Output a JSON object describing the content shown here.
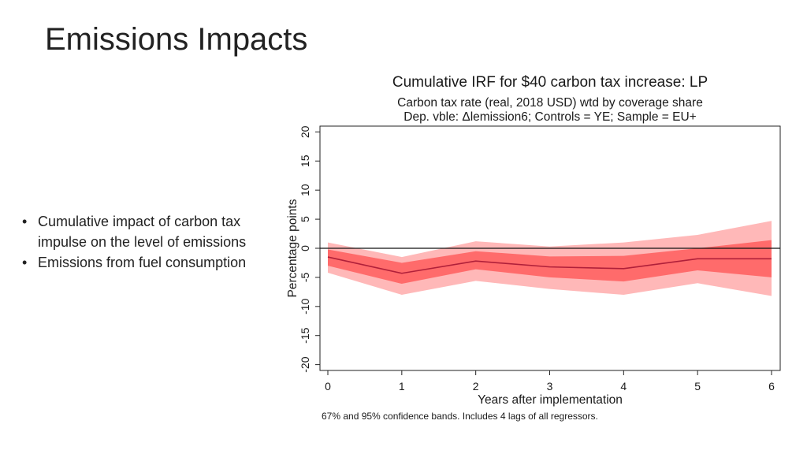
{
  "slide": {
    "title": "Emissions Impacts",
    "bullets": [
      "Cumulative impact of carbon tax impulse on the level of emissions",
      "Emissions from fuel consumption"
    ]
  },
  "chart_data": {
    "type": "line",
    "title": "Cumulative IRF for $40 carbon tax increase: LP",
    "subtitle_lines": [
      "Carbon tax rate (real, 2018 USD) wtd by coverage share",
      "Dep. vble: Δlemission6; Controls = YE; Sample = EU+"
    ],
    "xlabel": "Years after implementation",
    "ylabel": "Percentage points",
    "note": "67% and 95% confidence bands. Includes 4 lags of all regressors.",
    "x": [
      0,
      1,
      2,
      3,
      4,
      5,
      6
    ],
    "x_ticks": [
      "0",
      "1",
      "2",
      "3",
      "4",
      "5",
      "6"
    ],
    "y_ticks": [
      "-20",
      "-15",
      "-10",
      "-5",
      "0",
      "5",
      "10",
      "15",
      "20"
    ],
    "xlim": [
      0,
      6
    ],
    "ylim": [
      -21,
      21
    ],
    "zero_line": 0,
    "series": [
      {
        "values": [
          -1.5,
          -4.3,
          -2.2,
          -3.2,
          -3.5,
          -1.8,
          -1.8
        ],
        "color": "#b0203a"
      }
    ],
    "bands": [
      {
        "level": "95%",
        "lower": [
          -4.2,
          -8.0,
          -5.6,
          -7.0,
          -8.0,
          -6.0,
          -8.2
        ],
        "upper": [
          1.0,
          -1.5,
          1.2,
          0.3,
          1.0,
          2.3,
          4.7
        ],
        "color": "#ffb8b8"
      },
      {
        "level": "67%",
        "lower": [
          -3.0,
          -6.1,
          -3.6,
          -5.0,
          -5.7,
          -3.8,
          -5.0
        ],
        "upper": [
          -0.2,
          -2.5,
          -0.5,
          -1.4,
          -1.3,
          0.0,
          1.4
        ],
        "color": "#ff6b6b"
      }
    ],
    "grid": false,
    "legend": "none"
  }
}
